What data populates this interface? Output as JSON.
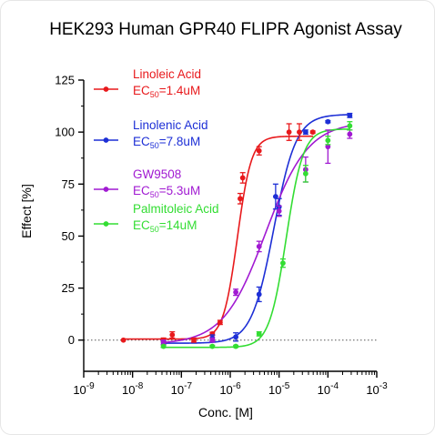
{
  "chart_data": {
    "type": "scatter",
    "title": "HEK293 Human GPR40 FLIPR Agonist Assay",
    "xlabel": "Conc. [M]",
    "ylabel": "Effect  [%]",
    "x_scale": "log",
    "xlim": [
      1e-09,
      0.001
    ],
    "ylim": [
      -15,
      125
    ],
    "x_ticks": [
      {
        "value": 1e-09,
        "base": "10",
        "exp": "-9"
      },
      {
        "value": 1e-08,
        "base": "10",
        "exp": "-8"
      },
      {
        "value": 1e-07,
        "base": "10",
        "exp": "-7"
      },
      {
        "value": 1e-06,
        "base": "10",
        "exp": "-6"
      },
      {
        "value": 1e-05,
        "base": "10",
        "exp": "-5"
      },
      {
        "value": 0.0001,
        "base": "10",
        "exp": "-4"
      },
      {
        "value": 0.001,
        "base": "10",
        "exp": "-3"
      }
    ],
    "y_ticks": [
      {
        "value": 0,
        "label": "0"
      },
      {
        "value": 25,
        "label": "25"
      },
      {
        "value": 50,
        "label": "50"
      },
      {
        "value": 75,
        "label": "75"
      },
      {
        "value": 100,
        "label": "100"
      },
      {
        "value": 125,
        "label": "125"
      }
    ],
    "baseline": 0,
    "legend_position": "top-left",
    "series": [
      {
        "name": "Linoleic Acid",
        "ec50_prefix": "EC",
        "ec50_sub": "50",
        "ec50_value": "=1.4uM",
        "color": "#e8191c",
        "fit": {
          "bottom": 0.5,
          "top": 98,
          "ec50": 1.4e-06,
          "hill": 3.0,
          "from": 6e-09,
          "to": 5e-05
        },
        "points": [
          {
            "x": 6.5e-09,
            "y": 0,
            "err": 0
          },
          {
            "x": 4.3e-08,
            "y": 0,
            "err": 1
          },
          {
            "x": 6.5e-08,
            "y": 2.5,
            "err": 1.5
          },
          {
            "x": 1.8e-07,
            "y": 0,
            "err": 1
          },
          {
            "x": 4.3e-07,
            "y": 3,
            "err": 0.8
          },
          {
            "x": 6.2e-07,
            "y": 8.5,
            "err": 1
          },
          {
            "x": 1.6e-06,
            "y": 68,
            "err": 2.5
          },
          {
            "x": 1.8e-06,
            "y": 78,
            "err": 2.5
          },
          {
            "x": 3.9e-06,
            "y": 91,
            "err": 2
          },
          {
            "x": 1.6e-05,
            "y": 100,
            "err": 4
          },
          {
            "x": 2.6e-05,
            "y": 100,
            "err": 4
          },
          {
            "x": 4.9e-05,
            "y": 100,
            "err": 0.5
          }
        ]
      },
      {
        "name": "Linolenic Acid",
        "ec50_prefix": "EC",
        "ec50_sub": "50",
        "ec50_value": "=7.8uM",
        "color": "#1d2fd6",
        "fit": {
          "bottom": -1.5,
          "top": 108.5,
          "ec50": 7.8e-06,
          "hill": 1.9,
          "from": 4.3e-08,
          "to": 0.00028
        },
        "points": [
          {
            "x": 4.3e-08,
            "y": -2,
            "err": 1.5
          },
          {
            "x": 4.3e-07,
            "y": 1,
            "err": 1.5
          },
          {
            "x": 1.3e-06,
            "y": 1.5,
            "err": 2
          },
          {
            "x": 3.9e-06,
            "y": 22,
            "err": 3.5
          },
          {
            "x": 8.5e-06,
            "y": 69,
            "err": 6
          },
          {
            "x": 1e-05,
            "y": 64,
            "err": 4
          },
          {
            "x": 3.5e-05,
            "y": 100,
            "err": 1
          },
          {
            "x": 0.0001,
            "y": 105,
            "err": 0.5
          },
          {
            "x": 0.00028,
            "y": 108,
            "err": 1
          }
        ]
      },
      {
        "name": "GW9508",
        "ec50_prefix": "EC",
        "ec50_sub": "50",
        "ec50_value": "=5.3uM",
        "color": "#a11ad2",
        "fit": {
          "bottom": -2,
          "top": 105,
          "ec50": 5.3e-06,
          "hill": 1.0,
          "from": 4.3e-08,
          "to": 0.00028
        },
        "points": [
          {
            "x": 4.3e-08,
            "y": -1,
            "err": 1
          },
          {
            "x": 4.3e-07,
            "y": 0,
            "err": 1
          },
          {
            "x": 1.3e-06,
            "y": 23,
            "err": 1.5
          },
          {
            "x": 3.9e-06,
            "y": 45,
            "err": 2.5
          },
          {
            "x": 1e-05,
            "y": 62,
            "err": 2.5
          },
          {
            "x": 3.5e-05,
            "y": 82,
            "err": 6
          },
          {
            "x": 0.0001,
            "y": 93,
            "err": 8
          },
          {
            "x": 0.00028,
            "y": 99,
            "err": 2
          }
        ]
      },
      {
        "name": "Palmitoleic Acid",
        "ec50_prefix": "EC",
        "ec50_sub": "50",
        "ec50_value": "=14uM",
        "color": "#33dd33",
        "fit": {
          "bottom": -3.5,
          "top": 101.5,
          "ec50": 1.4e-05,
          "hill": 2.5,
          "from": 4.3e-08,
          "to": 0.00028
        },
        "points": [
          {
            "x": 4.3e-08,
            "y": -3,
            "err": 0.5
          },
          {
            "x": 4.3e-07,
            "y": -3,
            "err": 0.5
          },
          {
            "x": 1.3e-06,
            "y": -3,
            "err": 0.5
          },
          {
            "x": 3.9e-06,
            "y": 3,
            "err": 1
          },
          {
            "x": 1.2e-05,
            "y": 37,
            "err": 2
          },
          {
            "x": 3.5e-05,
            "y": 80,
            "err": 4
          },
          {
            "x": 0.0001,
            "y": 96,
            "err": 2
          },
          {
            "x": 0.00028,
            "y": 103,
            "err": 2
          }
        ]
      }
    ]
  }
}
